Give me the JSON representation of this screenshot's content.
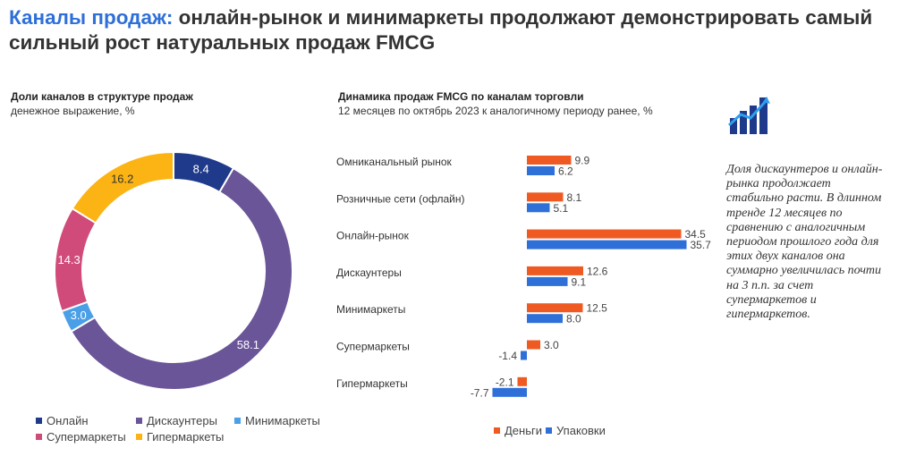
{
  "title": {
    "accent": "Каналы продаж:",
    "rest": " онлайн-рынок и минимаркеты продолжают демонстрировать самый сильный рост натуральных продаж FMCG"
  },
  "colors": {
    "accent": "#2e6fd8",
    "online": "#1f3a8a",
    "discounters": "#6a5598",
    "minimarkets": "#4a9fe6",
    "supermarkets": "#d14b7a",
    "hypermarkets": "#fbb413",
    "money": "#ef5a23",
    "packs": "#2e6fd8"
  },
  "sidebar": {
    "icon": "bar-chart-growth-icon",
    "text": "Доля дискаунтеров и онлайн-рынка продолжает стабильно расти. В длинном тренде 12 месяцев по сравнению с аналогичным периодом прошлого года для этих двух каналов она суммарно увеличилась почти на 3 п.п. за счет супермаркетов и гипермаркетов."
  },
  "chart_data": [
    {
      "type": "pie",
      "title": "Доли каналов в структуре продаж",
      "subtitle": "денежное выражение, %",
      "categories": [
        "Онлайн",
        "Дискаунтеры",
        "Минимаркеты",
        "Супермаркеты",
        "Гипермаркеты"
      ],
      "values": [
        8.4,
        58.1,
        3.0,
        14.3,
        16.2
      ],
      "value_labels": [
        "8.4",
        "58.1",
        "3.0",
        "14.3",
        "16.2"
      ],
      "legend_position": "bottom"
    },
    {
      "type": "bar",
      "orientation": "horizontal",
      "title": "Динамика продаж FMCG по каналам торговли",
      "subtitle": "12 месяцев по октябрь 2023 к аналогичному периоду ранее, %",
      "categories": [
        "Омниканальный рынок",
        "Розничные сети (офлайн)",
        "Онлайн-рынок",
        "Дискаунтеры",
        "Минимаркеты",
        "Супермаркеты",
        "Гипермаркеты"
      ],
      "series": [
        {
          "name": "Деньги",
          "values": [
            9.9,
            8.1,
            34.5,
            12.6,
            12.5,
            3.0,
            -2.1
          ],
          "labels": [
            "9.9",
            "8.1",
            "34.5",
            "12.6",
            "12.5",
            "3.0",
            "-2.1"
          ]
        },
        {
          "name": "Упаковки",
          "values": [
            6.2,
            5.1,
            35.7,
            9.1,
            8.0,
            -1.4,
            -7.7
          ],
          "labels": [
            "6.2",
            "5.1",
            "35.7",
            "9.1",
            "8.0",
            "-1.4",
            "-7.7"
          ]
        }
      ],
      "legend_position": "bottom"
    }
  ]
}
